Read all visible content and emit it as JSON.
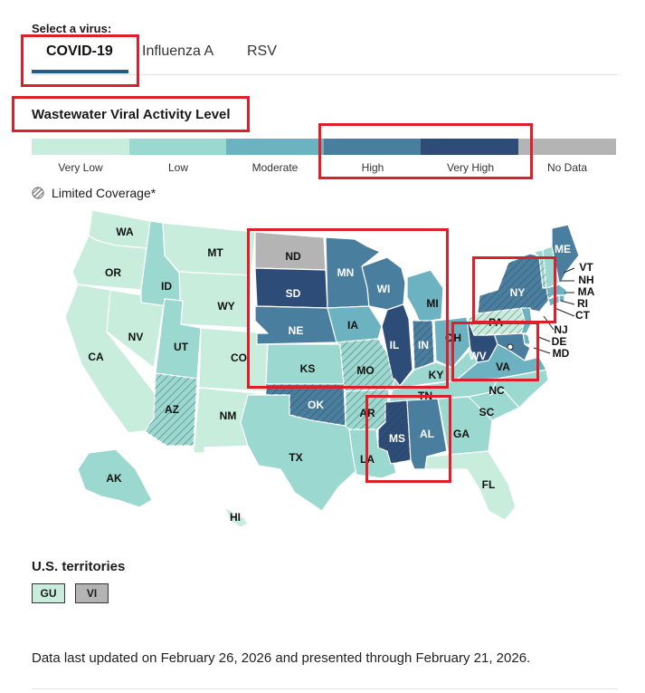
{
  "select_label": "Select a virus:",
  "tabs": [
    {
      "label": "COVID-19",
      "active": true
    },
    {
      "label": "Influenza A",
      "active": false
    },
    {
      "label": "RSV",
      "active": false
    }
  ],
  "section_title": "Wastewater Viral Activity Level",
  "legend": [
    {
      "label": "Very Low",
      "color": "#c8eddd"
    },
    {
      "label": "Low",
      "color": "#9bd8cf"
    },
    {
      "label": "Moderate",
      "color": "#6db2c0"
    },
    {
      "label": "High",
      "color": "#4a7e9f"
    },
    {
      "label": "Very High",
      "color": "#2d4d78"
    },
    {
      "label": "No Data",
      "color": "#b4b4b4"
    }
  ],
  "limited_coverage_label": "Limited Coverage*",
  "colors": {
    "highlight_box": "#dd1f2b",
    "tab_underline": "#1d5d90",
    "ocean_outline": "#ffffff"
  },
  "states": [
    {
      "abbr": "WA",
      "level": "Very Low"
    },
    {
      "abbr": "OR",
      "level": "Very Low"
    },
    {
      "abbr": "CA",
      "level": "Very Low"
    },
    {
      "abbr": "NV",
      "level": "Very Low"
    },
    {
      "abbr": "ID",
      "level": "Low"
    },
    {
      "abbr": "MT",
      "level": "Very Low"
    },
    {
      "abbr": "WY",
      "level": "Very Low"
    },
    {
      "abbr": "UT",
      "level": "Low"
    },
    {
      "abbr": "AZ",
      "level": "Low",
      "limited": true
    },
    {
      "abbr": "CO",
      "level": "Very Low"
    },
    {
      "abbr": "NM",
      "level": "Very Low"
    },
    {
      "abbr": "ND",
      "level": "No Data"
    },
    {
      "abbr": "SD",
      "level": "Very High"
    },
    {
      "abbr": "NE",
      "level": "High"
    },
    {
      "abbr": "KS",
      "level": "Low"
    },
    {
      "abbr": "OK",
      "level": "High",
      "limited": true
    },
    {
      "abbr": "TX",
      "level": "Low"
    },
    {
      "abbr": "MN",
      "level": "High"
    },
    {
      "abbr": "IA",
      "level": "Moderate"
    },
    {
      "abbr": "MO",
      "level": "Low",
      "limited": true
    },
    {
      "abbr": "AR",
      "level": "Low",
      "limited": true
    },
    {
      "abbr": "LA",
      "level": "Low"
    },
    {
      "abbr": "WI",
      "level": "High"
    },
    {
      "abbr": "IL",
      "level": "Very High"
    },
    {
      "abbr": "MI",
      "level": "Moderate"
    },
    {
      "abbr": "IN",
      "level": "High",
      "limited": true
    },
    {
      "abbr": "OH",
      "level": "Moderate"
    },
    {
      "abbr": "KY",
      "level": "Low"
    },
    {
      "abbr": "TN",
      "level": "Low"
    },
    {
      "abbr": "MS",
      "level": "Very High",
      "limited": true
    },
    {
      "abbr": "AL",
      "level": "High"
    },
    {
      "abbr": "GA",
      "level": "Low"
    },
    {
      "abbr": "FL",
      "level": "Very Low"
    },
    {
      "abbr": "SC",
      "level": "Low"
    },
    {
      "abbr": "NC",
      "level": "Low"
    },
    {
      "abbr": "VA",
      "level": "Moderate"
    },
    {
      "abbr": "WV",
      "level": "Very High"
    },
    {
      "abbr": "PA",
      "level": "Very Low",
      "limited": true
    },
    {
      "abbr": "NY",
      "level": "High",
      "limited": true
    },
    {
      "abbr": "VT",
      "level": "Low"
    },
    {
      "abbr": "NH",
      "level": "Low"
    },
    {
      "abbr": "ME",
      "level": "High"
    },
    {
      "abbr": "MA",
      "level": "Moderate"
    },
    {
      "abbr": "RI",
      "level": "Moderate"
    },
    {
      "abbr": "CT",
      "level": "Moderate"
    },
    {
      "abbr": "NJ",
      "level": "Moderate"
    },
    {
      "abbr": "DE",
      "level": "Moderate"
    },
    {
      "abbr": "MD",
      "level": "High"
    },
    {
      "abbr": "AK",
      "level": "Low"
    },
    {
      "abbr": "HI",
      "level": "Very Low"
    }
  ],
  "territories_title": "U.S. territories",
  "territories": [
    {
      "abbr": "GU",
      "level": "Very Low"
    },
    {
      "abbr": "VI",
      "level": "No Data"
    }
  ],
  "footer": "Data last updated on February 26, 2026 and presented through February 21, 2026."
}
